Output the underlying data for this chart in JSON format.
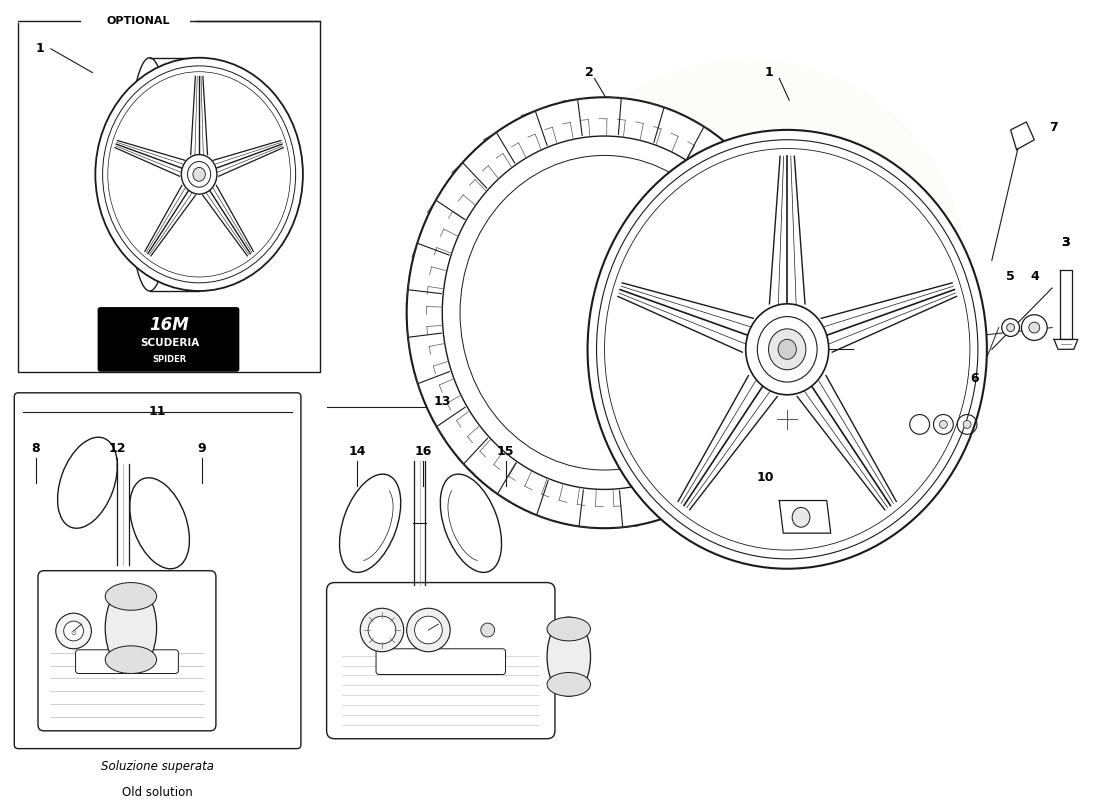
{
  "bg_color": "#ffffff",
  "line_color": "#1a1a1a",
  "optional_label": "OPTIONAL",
  "old_solution_label_it": "Soluzione superata",
  "old_solution_label_en": "Old solution",
  "watermark_color": "#c8b89a",
  "watermark_alpha": 0.18,
  "logo_16m": "16M",
  "logo_scuderia": "SCUDERIA",
  "logo_spider": "SPIDER",
  "part_nums": [
    "1",
    "2",
    "3",
    "4",
    "5",
    "6",
    "7",
    "8",
    "9",
    "10",
    "11",
    "12",
    "13",
    "14",
    "15",
    "16"
  ]
}
